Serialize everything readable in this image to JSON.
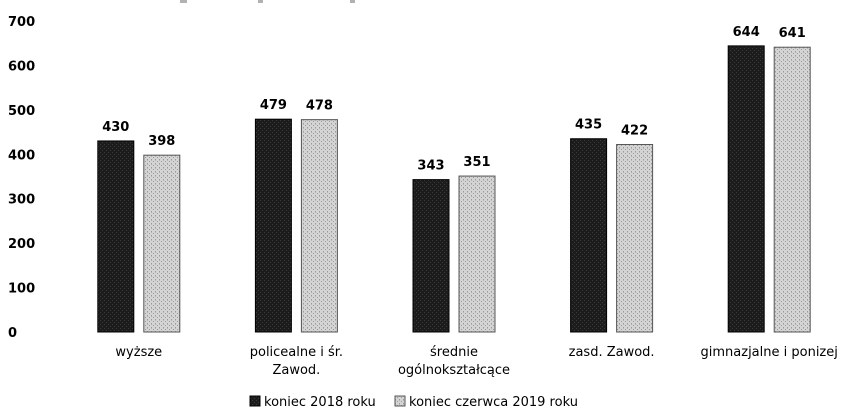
{
  "chart_data": {
    "type": "bar",
    "title": "",
    "xlabel": "",
    "ylabel": "",
    "ylim": [
      0,
      700
    ],
    "yticks": [
      0,
      100,
      200,
      300,
      400,
      500,
      600,
      700
    ],
    "categories": [
      [
        "wyższe"
      ],
      [
        "policealne i śr.",
        "Zawod."
      ],
      [
        "średnie",
        "ogólnokształcące"
      ],
      [
        "zasd. Zawod."
      ],
      [
        "gimnazjalne i ponizej"
      ]
    ],
    "series": [
      {
        "name": "koniec 2018 roku",
        "color": "#1c1c1c",
        "values": [
          430,
          479,
          343,
          435,
          644
        ]
      },
      {
        "name": "koniec czerwca 2019 roku",
        "color": "#d2d2d2",
        "values": [
          398,
          478,
          351,
          422,
          641
        ]
      }
    ],
    "grid": false,
    "legend_position": "bottom-center",
    "data_labels": true
  }
}
